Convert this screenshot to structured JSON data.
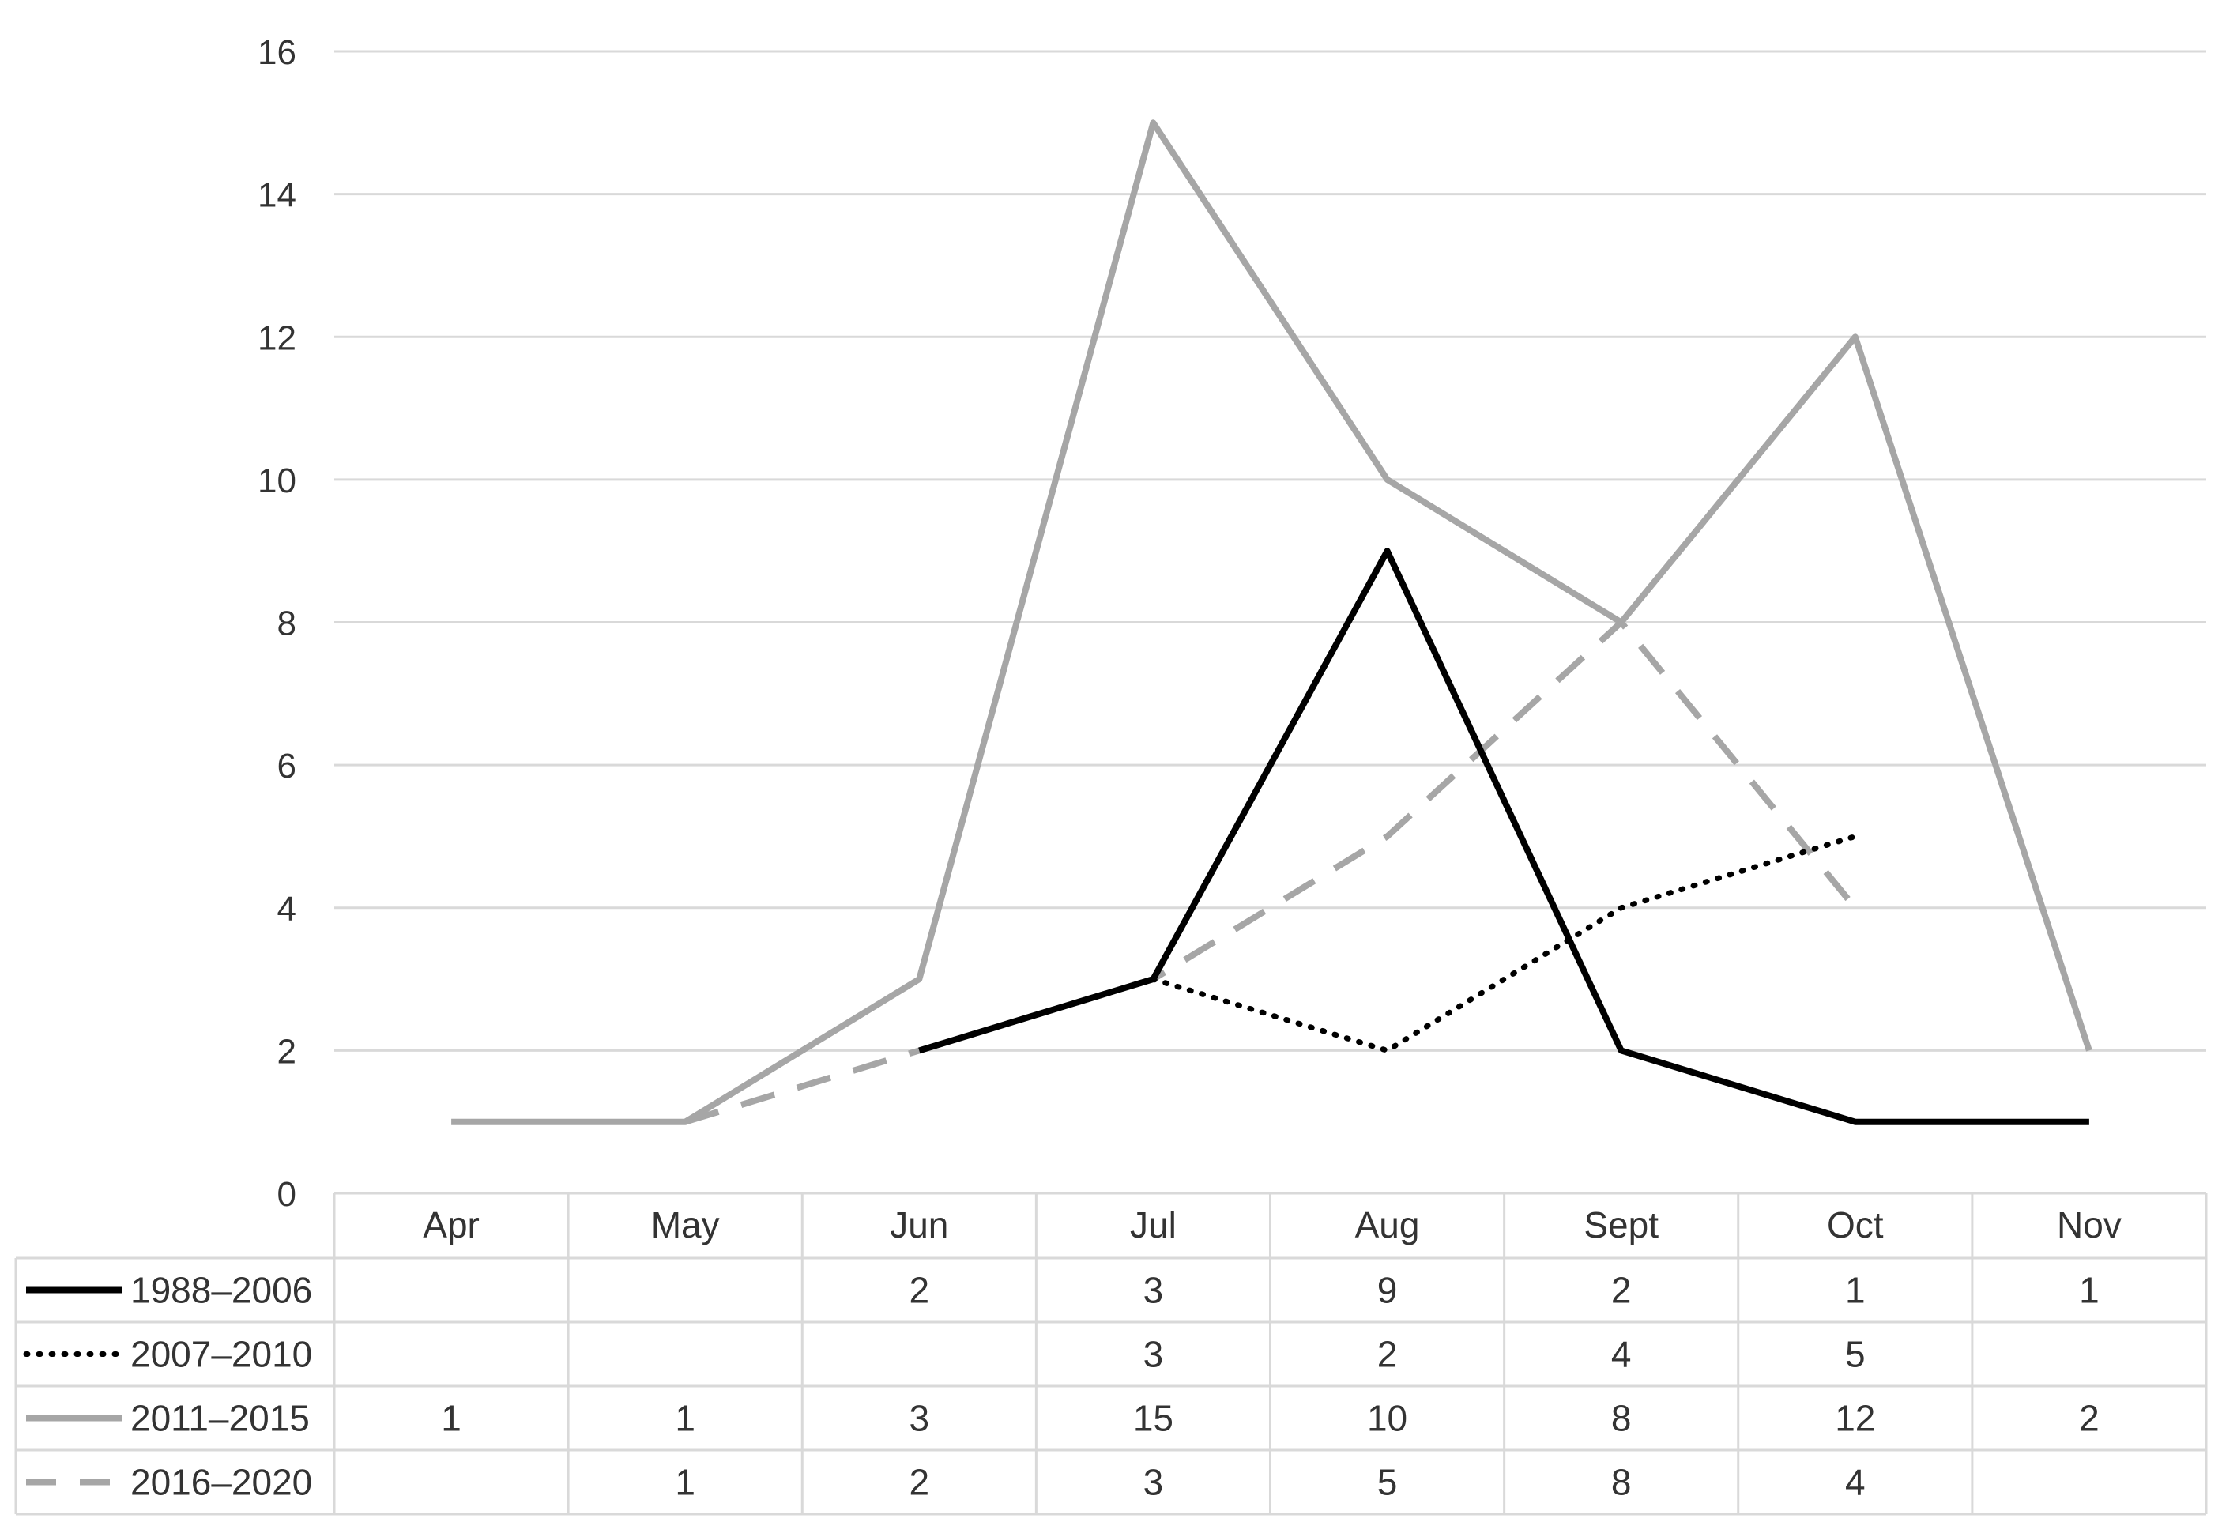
{
  "chart_data": {
    "type": "line",
    "categories": [
      "Apr",
      "May",
      "Jun",
      "Jul",
      "Aug",
      "Sept",
      "Oct",
      "Nov"
    ],
    "ylim": [
      0,
      16
    ],
    "yticks": [
      "0",
      "2",
      "4",
      "6",
      "8",
      "10",
      "12",
      "14",
      "16"
    ],
    "grid": true,
    "legend": "data-table-left",
    "series": [
      {
        "name": "1988–2006",
        "values": [
          null,
          null,
          2,
          3,
          9,
          2,
          1,
          1
        ],
        "color": "#000000",
        "dash": "solid"
      },
      {
        "name": "2007–2010",
        "values": [
          null,
          null,
          null,
          3,
          2,
          4,
          5,
          null
        ],
        "color": "#000000",
        "dash": "dotted"
      },
      {
        "name": "2011–2015",
        "values": [
          1,
          1,
          3,
          15,
          10,
          8,
          12,
          2
        ],
        "color": "#a6a6a6",
        "dash": "solid"
      },
      {
        "name": "2016–2020",
        "values": [
          null,
          1,
          2,
          3,
          5,
          8,
          4,
          null
        ],
        "color": "#a6a6a6",
        "dash": "dashed"
      }
    ]
  }
}
